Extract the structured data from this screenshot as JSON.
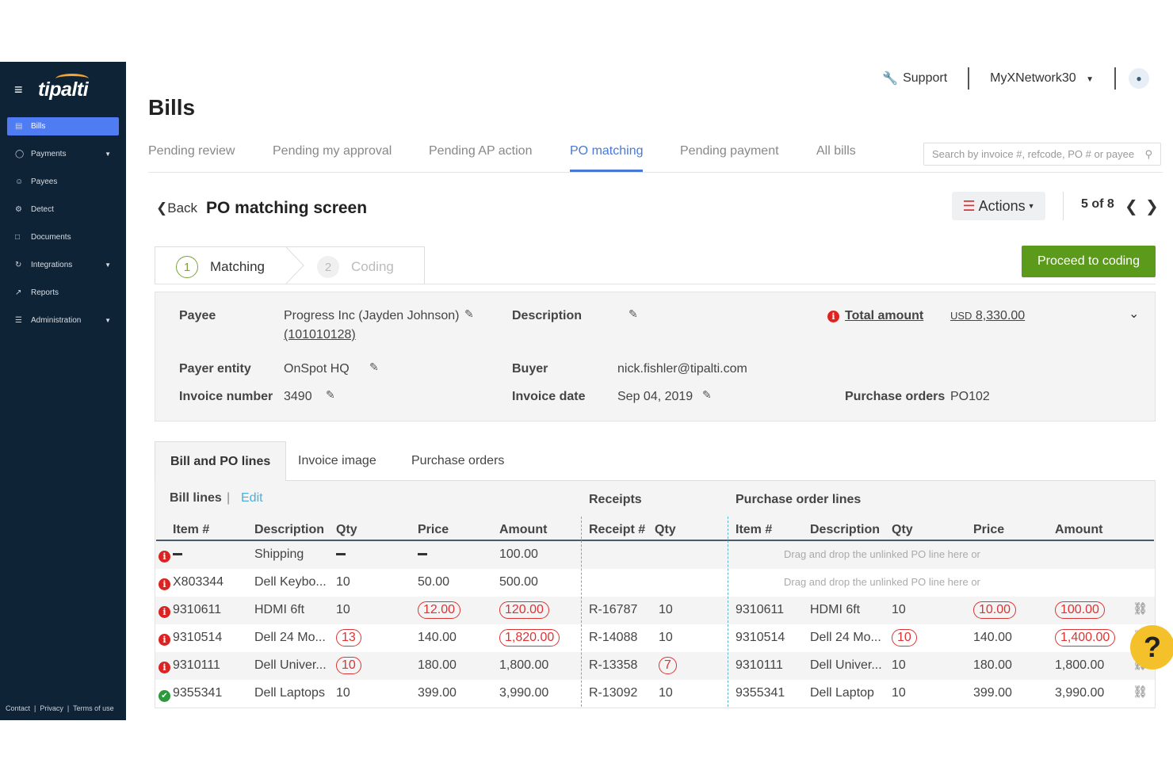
{
  "sidebar": {
    "logo": "tipalti",
    "items": [
      {
        "label": "Bills",
        "icon": "document-icon",
        "active": true
      },
      {
        "label": "Payments",
        "icon": "money-icon",
        "expandable": true
      },
      {
        "label": "Payees",
        "icon": "users-icon"
      },
      {
        "label": "Detect",
        "icon": "detect-icon"
      },
      {
        "label": "Documents",
        "icon": "file-icon"
      },
      {
        "label": "Integrations",
        "icon": "sync-icon",
        "expandable": true
      },
      {
        "label": "Reports",
        "icon": "chart-icon"
      },
      {
        "label": "Administration",
        "icon": "settings-list-icon",
        "expandable": true
      }
    ],
    "footer": {
      "contact": "Contact",
      "privacy": "Privacy",
      "terms": "Terms of use"
    }
  },
  "header": {
    "support": "Support",
    "network": "MyXNetwork30",
    "page_title": "Bills"
  },
  "tabs": [
    "Pending review",
    "Pending my approval",
    "Pending AP action",
    "PO matching",
    "Pending payment",
    "All bills"
  ],
  "active_tab": "PO matching",
  "search": {
    "placeholder": "Search by invoice #, refcode, PO # or payee"
  },
  "subheader": {
    "back": "Back",
    "title": "PO matching screen",
    "actions": "Actions",
    "pager": "5 of 8"
  },
  "steps": [
    {
      "num": "1",
      "label": "Matching"
    },
    {
      "num": "2",
      "label": "Coding"
    }
  ],
  "proceed_label": "Proceed to coding",
  "summary": {
    "payee_label": "Payee",
    "payee_value": "Progress Inc (Jayden Johnson)",
    "payee_id": "(101010128)",
    "description_label": "Description",
    "total_label": "Total amount",
    "total_currency": "USD",
    "total_value": "8,330.00",
    "payer_entity_label": "Payer entity",
    "payer_entity_value": "OnSpot HQ",
    "buyer_label": "Buyer",
    "buyer_value": "nick.fishler@tipalti.com",
    "invoice_number_label": "Invoice number",
    "invoice_number_value": "3490",
    "invoice_date_label": "Invoice date",
    "invoice_date_value": "Sep 04, 2019",
    "purchase_orders_label": "Purchase orders",
    "purchase_orders_value": "PO102"
  },
  "bottom_tabs": [
    "Bill and PO lines",
    "Invoice image",
    "Purchase orders"
  ],
  "grid": {
    "bill_lines": "Bill lines",
    "edit": "Edit",
    "receipts": "Receipts",
    "po_lines": "Purchase order lines",
    "columns": {
      "item": "Item #",
      "description": "Description",
      "qty": "Qty",
      "price": "Price",
      "amount": "Amount",
      "receipt": "Receipt #",
      "r_qty": "Qty",
      "po_item": "Item #",
      "po_description": "Description",
      "po_qty": "Qty",
      "po_price": "Price",
      "po_amount": "Amount"
    },
    "drag_text": "Drag and drop the unlinked PO line here or",
    "rows": [
      {
        "status": "error",
        "item": "",
        "description": "Shipping",
        "qty": "",
        "price": "",
        "amount": "100.00",
        "receipt": "",
        "r_qty": "",
        "po_item": "",
        "po_description": "",
        "po_qty": "",
        "po_price": "",
        "po_amount": "",
        "unlinked": true
      },
      {
        "status": "error",
        "item": "X803344",
        "description": "Dell Keybo...",
        "qty": "10",
        "price": "50.00",
        "amount": "500.00",
        "receipt": "",
        "r_qty": "",
        "po_item": "",
        "po_description": "",
        "po_qty": "",
        "po_price": "",
        "po_amount": "",
        "unlinked": true
      },
      {
        "status": "error",
        "item": "9310611",
        "description": "HDMI 6ft",
        "qty": "10",
        "price": "12.00",
        "amount": "120.00",
        "receipt": "R-16787",
        "r_qty": "10",
        "po_item": "9310611",
        "po_description": "HDMI 6ft",
        "po_qty": "10",
        "po_price": "10.00",
        "po_amount": "100.00"
      },
      {
        "status": "error",
        "item": "9310514",
        "description": "Dell 24 Mo...",
        "qty": "13",
        "price": "140.00",
        "amount": "1,820.00",
        "receipt": "R-14088",
        "r_qty": "10",
        "po_item": "9310514",
        "po_description": "Dell 24 Mo...",
        "po_qty": "10",
        "po_price": "140.00",
        "po_amount": "1,400.00"
      },
      {
        "status": "error",
        "item": "9310111",
        "description": "Dell Univer...",
        "qty": "10",
        "price": "180.00",
        "amount": "1,800.00",
        "receipt": "R-13358",
        "r_qty": "7",
        "po_item": "9310111",
        "po_description": "Dell Univer...",
        "po_qty": "10",
        "po_price": "180.00",
        "po_amount": "1,800.00"
      },
      {
        "status": "ok",
        "item": "9355341",
        "description": "Dell Laptops",
        "qty": "10",
        "price": "399.00",
        "amount": "3,990.00",
        "receipt": "R-13092",
        "r_qty": "10",
        "po_item": "9355341",
        "po_description": "Dell Laptop",
        "po_qty": "10",
        "po_price": "399.00",
        "po_amount": "3,990.00"
      }
    ]
  },
  "colors": {
    "accent": "#4a78d6",
    "sidebar": "#0f2336",
    "active_nav": "#4f7cf2",
    "proceed": "#5c9a1b",
    "error": "#d22222",
    "ok": "#2a9a3a"
  }
}
